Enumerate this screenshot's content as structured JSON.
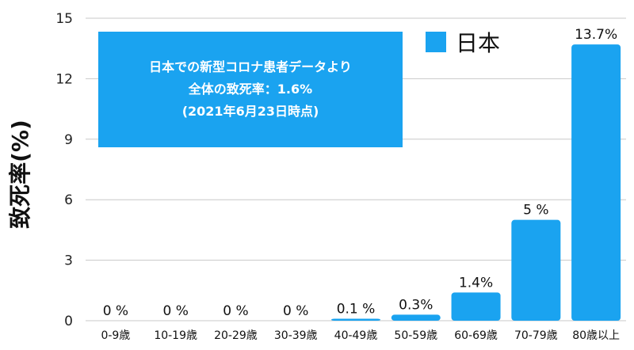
{
  "chart_data": {
    "type": "bar",
    "ylabel": "致死率(%)",
    "ylim": [
      0,
      15
    ],
    "yticks": [
      "0",
      "3",
      "6",
      "9",
      "12",
      "15"
    ],
    "grid": true,
    "legend_position": "top-right",
    "color": "#1aa3f0",
    "series": [
      {
        "name": "日本",
        "values": [
          0,
          0,
          0,
          0,
          0.1,
          0.3,
          1.4,
          5,
          13.7
        ],
        "data_labels": [
          "0 %",
          "0 %",
          "0 %",
          "0 %",
          "0.1 %",
          "0.3%",
          "1.4%",
          "5 %",
          "13.7%"
        ]
      }
    ],
    "categories": [
      "0-9歳",
      "10-19歳",
      "20-29歳",
      "30-39歳",
      "40-49歳",
      "50-59歳",
      "60-69歳",
      "70-79歳",
      "80歳以上"
    ],
    "annotation": {
      "lines": [
        "日本での新型コロナ患者データより",
        "全体の致死率：1.6%",
        "(2021年6月23日時点)"
      ]
    }
  }
}
